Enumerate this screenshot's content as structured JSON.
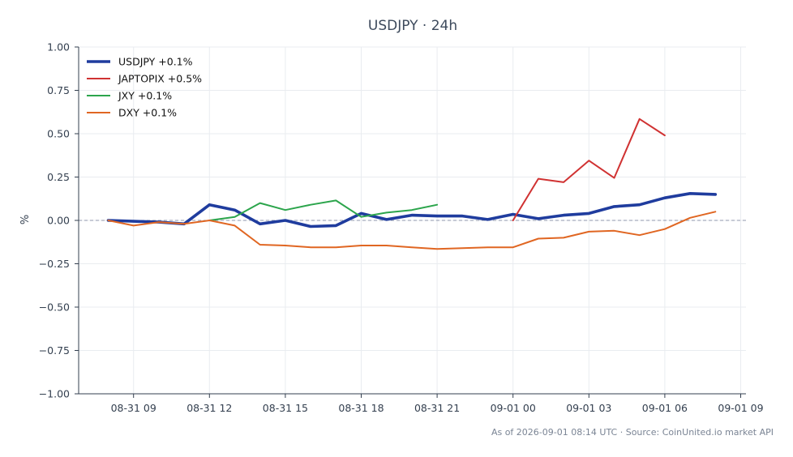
{
  "chart_data": {
    "type": "line",
    "title": "USDJPY · 24h",
    "xlabel": "",
    "ylabel": "%",
    "ylim": [
      -1.0,
      1.0
    ],
    "yticks": [
      "1.00",
      "0.75",
      "0.50",
      "0.25",
      "0.00",
      "−0.25",
      "−0.50",
      "−0.75",
      "−1.00"
    ],
    "xtick_labels": [
      "08-31 09",
      "08-31 12",
      "08-31 15",
      "08-31 18",
      "08-31 21",
      "09-01 00",
      "09-01 03",
      "09-01 06",
      "09-01 09"
    ],
    "x_hours": [
      "08-31 08",
      "08-31 09",
      "08-31 10",
      "08-31 11",
      "08-31 12",
      "08-31 13",
      "08-31 14",
      "08-31 15",
      "08-31 16",
      "08-31 17",
      "08-31 18",
      "08-31 19",
      "08-31 20",
      "08-31 21",
      "08-31 22",
      "08-31 23",
      "09-01 00",
      "09-01 01",
      "09-01 02",
      "09-01 03",
      "09-01 04",
      "09-01 05",
      "09-01 06",
      "09-01 07",
      "09-01 08"
    ],
    "grid": true,
    "zero_line": true,
    "legend_position": "top-left",
    "series": [
      {
        "name": "USDJPY +0.1%",
        "color": "#1f3c9e",
        "emphasis": true,
        "values": [
          0.0,
          -0.005,
          -0.01,
          -0.02,
          0.09,
          0.06,
          -0.02,
          0.0,
          -0.035,
          -0.03,
          0.04,
          0.005,
          0.03,
          0.025,
          0.025,
          0.005,
          0.035,
          0.01,
          0.03,
          0.04,
          0.08,
          0.09,
          0.13,
          0.155,
          0.15
        ]
      },
      {
        "name": "JAPTOPIX +0.5%",
        "color": "#d03232",
        "emphasis": false,
        "values": [
          null,
          null,
          null,
          null,
          null,
          null,
          null,
          null,
          null,
          null,
          null,
          null,
          null,
          null,
          null,
          null,
          0.0,
          0.24,
          0.22,
          0.345,
          0.245,
          0.585,
          0.49,
          null,
          null
        ]
      },
      {
        "name": "JXY +0.1%",
        "color": "#2ca54c",
        "emphasis": false,
        "values": [
          null,
          null,
          null,
          null,
          0.0,
          0.02,
          0.1,
          0.06,
          0.09,
          0.115,
          0.02,
          0.045,
          0.06,
          0.09,
          null,
          null,
          null,
          null,
          null,
          null,
          null,
          null,
          null,
          null,
          null
        ]
      },
      {
        "name": "DXY +0.1%",
        "color": "#e06622",
        "emphasis": false,
        "values": [
          0.0,
          -0.03,
          -0.01,
          -0.02,
          0.0,
          -0.03,
          -0.14,
          -0.145,
          -0.155,
          -0.155,
          -0.145,
          -0.145,
          -0.155,
          -0.165,
          -0.16,
          -0.155,
          -0.155,
          -0.105,
          -0.1,
          -0.065,
          -0.06,
          -0.085,
          -0.05,
          0.015,
          0.05
        ]
      }
    ]
  },
  "footer": "As of 2026-09-01 08:14 UTC · Source: CoinUnited.io market API"
}
